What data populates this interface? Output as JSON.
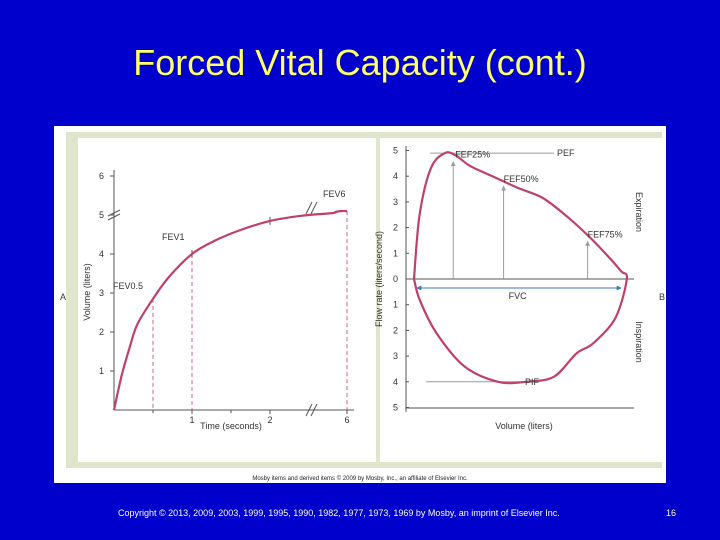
{
  "slide": {
    "title": "Forced Vital Capacity (cont.)",
    "copyright": "Copyright © 2013, 2009, 2003, 1999, 1995, 1990, 1982, 1977, 1973, 1969 by Mosby, an imprint of Elsevier Inc.",
    "page_number": "16",
    "figure_credit": "Mosby items and derived items © 2009 by Mosby, Inc., an affiliate of Elsevier Inc.",
    "panel_a_label": "A",
    "panel_b_label": "B",
    "colors": {
      "background": "#0000cc",
      "title": "#ffff66",
      "curve": "#c0406a",
      "panel": "#dfe6cc"
    }
  },
  "chart_data": [
    {
      "type": "line",
      "xlabel": "Time (seconds)",
      "ylabel": "Volume (liters)",
      "x_ticks": [
        "1",
        "2",
        "6"
      ],
      "y_ticks": [
        "1",
        "2",
        "3",
        "4",
        "5",
        "6"
      ],
      "ylim": [
        0,
        6
      ],
      "axis_break": true,
      "annotations": [
        {
          "label": "FEV0.5",
          "x": 0.5,
          "y": 2.85
        },
        {
          "label": "FEV1",
          "x": 1,
          "y": 4.0
        },
        {
          "label": "FEV6",
          "x": 6,
          "y": 5.1
        }
      ],
      "series": [
        {
          "x": [
            0,
            0.1,
            0.2,
            0.3,
            0.5,
            0.7,
            1,
            1.3,
            1.6,
            2,
            2.4,
            2.8,
            3.5,
            4.5,
            6
          ],
          "values": [
            0,
            0.9,
            1.6,
            2.2,
            2.85,
            3.4,
            4.0,
            4.35,
            4.6,
            4.85,
            4.98,
            5.05,
            5.08,
            5.1,
            5.1
          ]
        }
      ]
    },
    {
      "type": "line",
      "xlabel": "Volume (liters)",
      "ylabel": "Flow rate (liters/second)",
      "y_ticks": [
        "5",
        "4",
        "3",
        "2",
        "1",
        "0",
        "1",
        "2",
        "3",
        "4",
        "5"
      ],
      "region_labels": [
        "Expiration",
        "Inspiration"
      ],
      "annotations": [
        {
          "label": "PEF"
        },
        {
          "label": "FEF25%"
        },
        {
          "label": "FEF50%"
        },
        {
          "label": "FEF75%"
        },
        {
          "label": "FVC"
        },
        {
          "label": "PIF"
        }
      ],
      "series": [
        {
          "x": [
            0,
            0.1,
            0.3,
            0.55,
            0.75,
            1.0,
            1.4,
            1.85,
            2.3,
            2.75,
            3.15,
            3.5,
            3.7,
            3.8
          ],
          "values": [
            0,
            2.5,
            4.3,
            4.9,
            4.8,
            4.4,
            4.0,
            3.55,
            3.15,
            2.4,
            1.6,
            0.8,
            0.3,
            0
          ]
        },
        {
          "x": [
            3.8,
            3.6,
            3.2,
            2.9,
            2.5,
            2.0,
            1.5,
            0.9,
            0.4,
            0.1,
            0
          ],
          "values": [
            0,
            -1.5,
            -2.5,
            -2.9,
            -3.8,
            -4.0,
            -4.0,
            -3.4,
            -2.1,
            -0.8,
            0
          ]
        }
      ]
    }
  ]
}
